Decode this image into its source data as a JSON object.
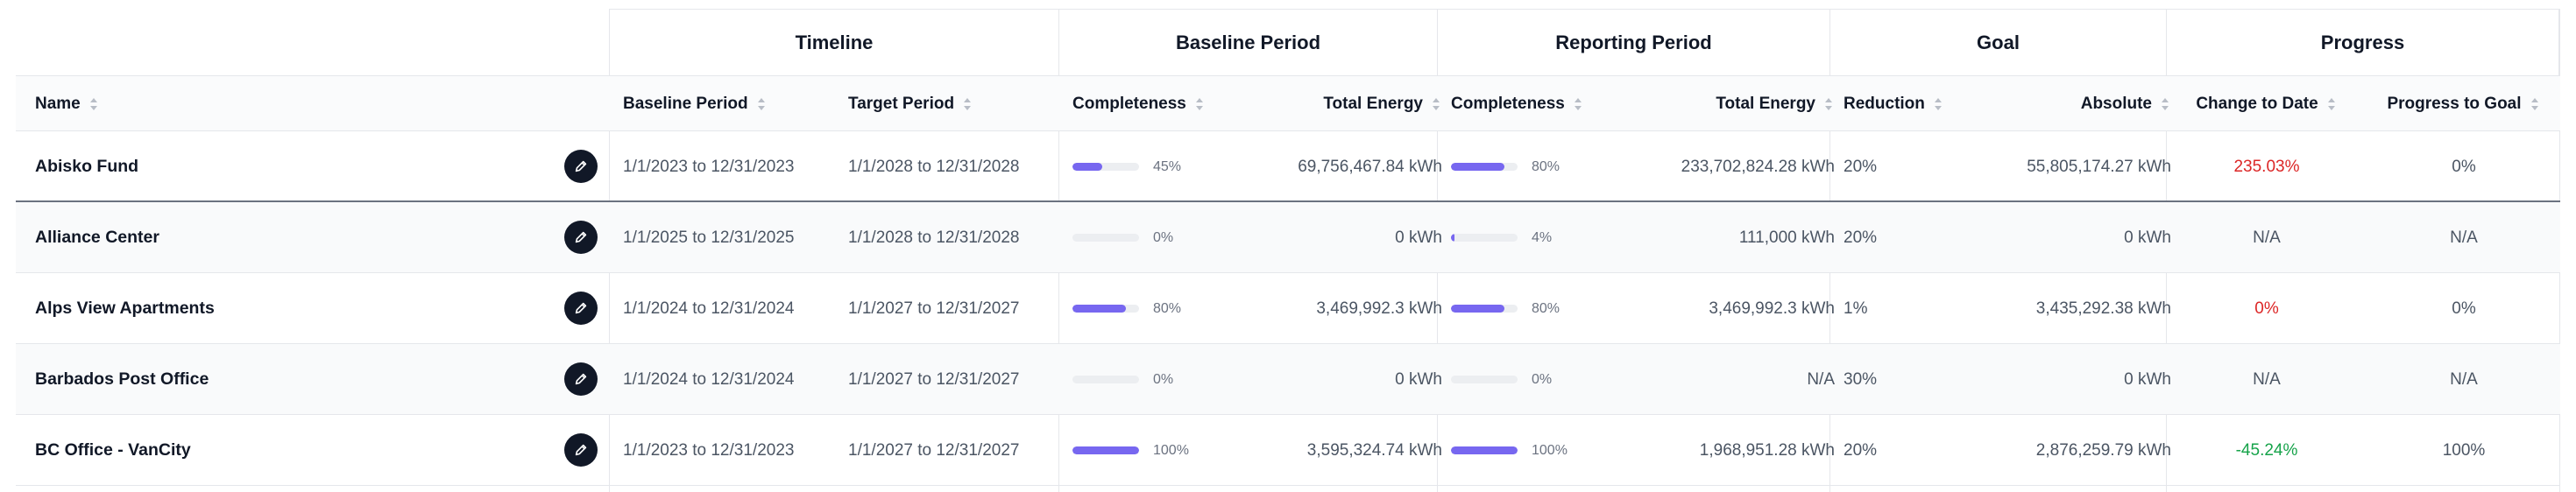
{
  "groups": {
    "timeline": "Timeline",
    "baseline": "Baseline Period",
    "reporting": "Reporting Period",
    "goal": "Goal",
    "progress": "Progress"
  },
  "columns": {
    "name": "Name",
    "baseline_period": "Baseline Period",
    "target_period": "Target Period",
    "baseline_completeness": "Completeness",
    "baseline_total_energy": "Total Energy",
    "reporting_completeness": "Completeness",
    "reporting_total_energy": "Total Energy",
    "reduction": "Reduction",
    "absolute": "Absolute",
    "change_to_date": "Change to Date",
    "progress_to_goal": "Progress to Goal"
  },
  "colors": {
    "bar_fill": "#7767f0",
    "negative": "#dc2626",
    "positive": "#16a34a"
  },
  "rows": [
    {
      "name": "Abisko Fund",
      "baseline_period": "1/1/2023 to 12/31/2023",
      "target_period": "1/1/2028 to 12/31/2028",
      "baseline_completeness": 45,
      "baseline_completeness_label": "45%",
      "baseline_total_energy": "69,756,467.84 kWh",
      "reporting_completeness": 80,
      "reporting_completeness_label": "80%",
      "reporting_total_energy": "233,702,824.28 kWh",
      "reduction": "20%",
      "absolute": "55,805,174.27 kWh",
      "change_to_date": "235.03%",
      "change_status": "red",
      "progress_to_goal": "0%"
    },
    {
      "name": "Alliance Center",
      "baseline_period": "1/1/2025 to 12/31/2025",
      "target_period": "1/1/2028 to 12/31/2028",
      "baseline_completeness": 0,
      "baseline_completeness_label": "0%",
      "baseline_total_energy": "0 kWh",
      "reporting_completeness": 4,
      "reporting_completeness_label": "4%",
      "reporting_total_energy": "111,000 kWh",
      "reduction": "20%",
      "absolute": "0 kWh",
      "change_to_date": "N/A",
      "change_status": "none",
      "progress_to_goal": "N/A"
    },
    {
      "name": "Alps View Apartments",
      "baseline_period": "1/1/2024 to 12/31/2024",
      "target_period": "1/1/2027 to 12/31/2027",
      "baseline_completeness": 80,
      "baseline_completeness_label": "80%",
      "baseline_total_energy": "3,469,992.3 kWh",
      "reporting_completeness": 80,
      "reporting_completeness_label": "80%",
      "reporting_total_energy": "3,469,992.3 kWh",
      "reduction": "1%",
      "absolute": "3,435,292.38 kWh",
      "change_to_date": "0%",
      "change_status": "red",
      "progress_to_goal": "0%"
    },
    {
      "name": "Barbados Post Office",
      "baseline_period": "1/1/2024 to 12/31/2024",
      "target_period": "1/1/2027 to 12/31/2027",
      "baseline_completeness": 0,
      "baseline_completeness_label": "0%",
      "baseline_total_energy": "0 kWh",
      "reporting_completeness": 0,
      "reporting_completeness_label": "0%",
      "reporting_total_energy": "N/A",
      "reduction": "30%",
      "absolute": "0 kWh",
      "change_to_date": "N/A",
      "change_status": "none",
      "progress_to_goal": "N/A"
    },
    {
      "name": "BC Office - VanCity",
      "baseline_period": "1/1/2023 to 12/31/2023",
      "target_period": "1/1/2027 to 12/31/2027",
      "baseline_completeness": 100,
      "baseline_completeness_label": "100%",
      "baseline_total_energy": "3,595,324.74 kWh",
      "reporting_completeness": 100,
      "reporting_completeness_label": "100%",
      "reporting_total_energy": "1,968,951.28 kWh",
      "reduction": "20%",
      "absolute": "2,876,259.79 kWh",
      "change_to_date": "-45.24%",
      "change_status": "green",
      "progress_to_goal": "100%"
    }
  ]
}
